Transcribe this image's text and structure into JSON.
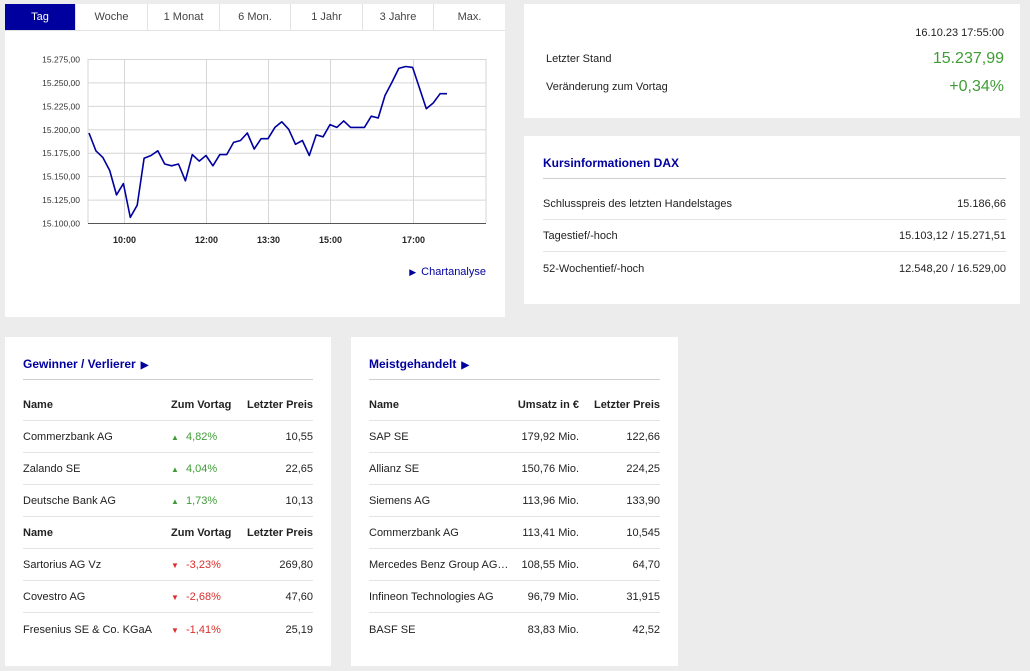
{
  "tabs": [
    "Tag",
    "Woche",
    "1 Monat",
    "6 Mon.",
    "1 Jahr",
    "3 Jahre",
    "Max."
  ],
  "colors": {
    "accent": "#00009f",
    "positive": "#3f9c35",
    "negative": "#d9302c"
  },
  "chart_link": "Chartanalyse",
  "chart_data": {
    "type": "line",
    "x_ticks": [
      "10:00",
      "12:00",
      "13:30",
      "15:00",
      "17:00"
    ],
    "y_ticks": [
      "15.100,00",
      "15.125,00",
      "15.150,00",
      "15.175,00",
      "15.200,00",
      "15.225,00",
      "15.250,00",
      "15.275,00"
    ],
    "ylim": [
      15100,
      15275
    ],
    "series": [
      {
        "values": [
          15196,
          15177,
          15170,
          15156,
          15130,
          15142,
          15106,
          15119,
          15169,
          15172,
          15177,
          15163,
          15161,
          15163,
          15145,
          15173,
          15166,
          15172,
          15161,
          15173,
          15173,
          15186,
          15188,
          15196,
          15179,
          15190,
          15190,
          15202,
          15208,
          15200,
          15184,
          15188,
          15172,
          15194,
          15192,
          15205,
          15202,
          15209,
          15202,
          15202,
          15202,
          15214,
          15212,
          15236,
          15250,
          15265,
          15267,
          15266,
          15244,
          15222,
          15228,
          15238,
          15238
        ]
      }
    ]
  },
  "quote": {
    "date": "16.10.23 17:55:00",
    "last_label": "Letzter Stand",
    "last_value": "15.237,99",
    "change_label": "Veränderung zum Vortag",
    "change_value": "+0,34%"
  },
  "info": {
    "title": "Kursinformationen DAX",
    "rows": [
      {
        "label": "Schlusspreis des letzten Handelstages",
        "value": "15.186,66"
      },
      {
        "label": "Tagestief/-hoch",
        "value": "15.103,12 / 15.271,51"
      },
      {
        "label": "52-Wochentief/-hoch",
        "value": "12.548,20 / 16.529,00"
      }
    ]
  },
  "gainers_losers": {
    "title": "Gewinner / Verlierer",
    "headers": [
      "Name",
      "Zum Vortag",
      "Letzter Preis"
    ],
    "gainers": [
      {
        "name": "Commerzbank AG",
        "change": "4,82%",
        "price": "10,55"
      },
      {
        "name": "Zalando SE",
        "change": "4,04%",
        "price": "22,65"
      },
      {
        "name": "Deutsche Bank AG",
        "change": "1,73%",
        "price": "10,13"
      }
    ],
    "losers": [
      {
        "name": "Sartorius AG Vz",
        "change": "-3,23%",
        "price": "269,80"
      },
      {
        "name": "Covestro AG",
        "change": "-2,68%",
        "price": "47,60"
      },
      {
        "name": "Fresenius SE & Co. KGaA",
        "change": "-1,41%",
        "price": "25,19"
      }
    ]
  },
  "most_traded": {
    "title": "Meistgehandelt",
    "headers": [
      "Name",
      "Umsatz in €",
      "Letzter Preis"
    ],
    "rows": [
      {
        "name": "SAP SE",
        "volume": "179,92 Mio.",
        "price": "122,66"
      },
      {
        "name": "Allianz SE",
        "volume": "150,76 Mio.",
        "price": "224,25"
      },
      {
        "name": "Siemens AG",
        "volume": "113,96 Mio.",
        "price": "133,90"
      },
      {
        "name": "Commerzbank AG",
        "volume": "113,41 Mio.",
        "price": "10,545"
      },
      {
        "name": "Mercedes Benz Group AG ...",
        "volume": "108,55 Mio.",
        "price": "64,70"
      },
      {
        "name": "Infineon Technologies AG",
        "volume": "96,79 Mio.",
        "price": "31,915"
      },
      {
        "name": "BASF SE",
        "volume": "83,83 Mio.",
        "price": "42,52"
      }
    ]
  }
}
